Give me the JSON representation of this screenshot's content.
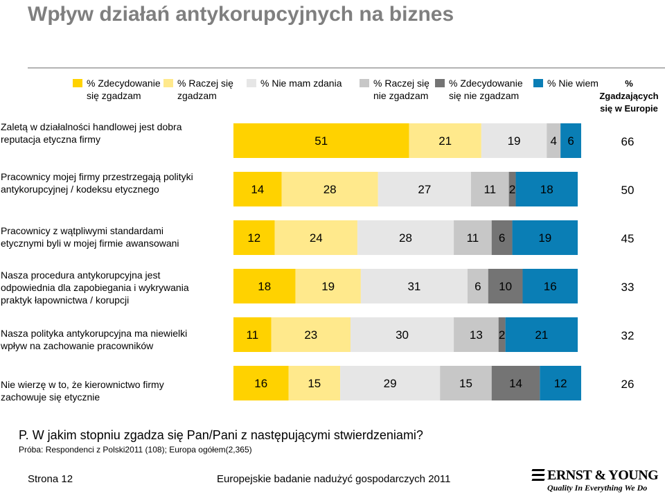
{
  "title": "Wpływ działań antykorupcyjnych na biznes",
  "legend": [
    {
      "label": "% Zdecydowanie\nsię zgadzam",
      "color": "#ffd200"
    },
    {
      "label": "% Raczej się\nzgadzam",
      "color": "#ffe98c"
    },
    {
      "label": "% Nie mam zdania",
      "color": "#e6e6e6"
    },
    {
      "label": "% Raczej się\nnie zgadzam",
      "color": "#c7c7c7"
    },
    {
      "label": "% Zdecydowanie\nsię nie zgadzam",
      "color": "#747474"
    },
    {
      "label": "% Nie wiem",
      "color": "#0a7eb5"
    }
  ],
  "eu_header": "%\nZgadzających\nsię w Europie",
  "chart_data": {
    "type": "bar",
    "orientation": "horizontal",
    "stacked": true,
    "categories": [
      "Zaletą w działalności handlowej jest dobra reputacja etyczna firmy",
      "Pracownicy mojej firmy przestrzegają polityki antykorupcyjnej / kodeksu etycznego",
      "Pracownicy z wątpliwymi standardami etycznymi byli w mojej firmie awansowani",
      "Nasza procedura antykorupcyjna jest odpowiednia dla zapobiegania i wykrywania praktyk łapownictwa / korupcji",
      "Nasza polityka antykorupcyjna ma niewielki wpływ na zachowanie pracowników",
      "Nie wierzę w to, że kierownictwo firmy zachowuje się etycznie"
    ],
    "category_labels": [
      "Zaletą w działalności handlowej jest dobra\nreputacja etyczna firmy",
      "Pracownicy mojej firmy przestrzegają polityki\nantykorupcyjnej / kodeksu etycznego",
      "Pracownicy z wątpliwymi standardami\netycznymi byli w mojej firmie awansowani",
      "Nasza procedura antykorupcyjna jest\nodpowiednia dla zapobiegania i wykrywania\npraktyk łapownictwa / korupcji",
      "Nasza polityka antykorupcyjna ma niewielki\nwpływ na zachowanie pracowników",
      "Nie wierzę w to, że kierownictwo firmy\nzachowuje się etycznie"
    ],
    "series": [
      {
        "name": "% Zdecydowanie się zgadzam",
        "values": [
          51,
          14,
          12,
          18,
          11,
          16
        ]
      },
      {
        "name": "% Raczej się zgadzam",
        "values": [
          21,
          28,
          24,
          19,
          23,
          15
        ]
      },
      {
        "name": "% Nie mam zdania",
        "values": [
          19,
          27,
          28,
          31,
          30,
          29
        ]
      },
      {
        "name": "% Raczej się nie zgadzam",
        "values": [
          4,
          11,
          11,
          6,
          13,
          15
        ]
      },
      {
        "name": "% Zdecydowanie się nie zgadzam",
        "values": [
          0,
          2,
          6,
          10,
          2,
          14
        ]
      },
      {
        "name": "% Nie wiem",
        "values": [
          6,
          18,
          19,
          16,
          21,
          12
        ]
      }
    ],
    "europe_agree": [
      66,
      50,
      45,
      33,
      32,
      26
    ],
    "xlim": [
      0,
      100
    ],
    "colors": [
      "#ffd200",
      "#ffe98c",
      "#e6e6e6",
      "#c7c7c7",
      "#747474",
      "#0a7eb5"
    ]
  },
  "question": "P. W jakim stopniu zgadza się Pan/Pani z następującymi stwierdzeniami?",
  "sample": "Próba: Respondenci z Polski2011 (108); Europa ogółem(2,365)",
  "footer": {
    "page": "Strona 12",
    "center": "Europejskie badanie nadużyć gospodarczych 2011"
  },
  "logo": {
    "name": "ERNST & YOUNG",
    "tagline": "Quality In Everything We Do"
  }
}
